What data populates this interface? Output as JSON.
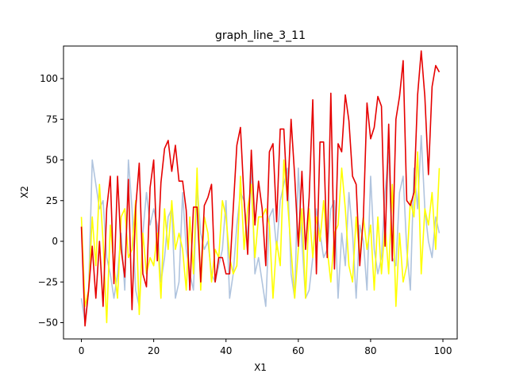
{
  "chart_data": {
    "type": "line",
    "title": "graph_line_3_11",
    "xlabel": "X1",
    "ylabel": "X2",
    "xlim": [
      -4.95,
      103.95
    ],
    "ylim": [
      -60,
      120
    ],
    "xticks": [
      0,
      20,
      40,
      60,
      80,
      100
    ],
    "yticks": [
      -50,
      -25,
      0,
      25,
      50,
      75,
      100
    ],
    "grid": false,
    "legend": "none",
    "x": [
      0,
      1,
      2,
      3,
      4,
      5,
      6,
      7,
      8,
      9,
      10,
      11,
      12,
      13,
      14,
      15,
      16,
      17,
      18,
      19,
      20,
      21,
      22,
      23,
      24,
      25,
      26,
      27,
      28,
      29,
      30,
      31,
      32,
      33,
      34,
      35,
      36,
      37,
      38,
      39,
      40,
      41,
      42,
      43,
      44,
      45,
      46,
      47,
      48,
      49,
      50,
      51,
      52,
      53,
      54,
      55,
      56,
      57,
      58,
      59,
      60,
      61,
      62,
      63,
      64,
      65,
      66,
      67,
      68,
      69,
      70,
      71,
      72,
      73,
      74,
      75,
      76,
      77,
      78,
      79,
      80,
      81,
      82,
      83,
      84,
      85,
      86,
      87,
      88,
      89,
      90,
      91,
      92,
      93,
      94,
      95,
      96,
      97,
      98,
      99
    ],
    "series": [
      {
        "color": "#b0c4de",
        "values": [
          -35,
          -50,
          -30,
          50,
          35,
          20,
          25,
          -10,
          -20,
          -35,
          -20,
          5,
          -30,
          50,
          20,
          -30,
          -40,
          5,
          30,
          10,
          20,
          10,
          -25,
          -10,
          15,
          20,
          -35,
          -25,
          30,
          -5,
          -20,
          -30,
          35,
          5,
          -5,
          0,
          -20,
          -25,
          -15,
          -5,
          25,
          -35,
          -20,
          10,
          30,
          25,
          0,
          45,
          -20,
          -10,
          -25,
          -40,
          15,
          20,
          -5,
          25,
          35,
          45,
          -20,
          -35,
          45,
          0,
          -35,
          -30,
          -10,
          20,
          5,
          -10,
          -5,
          20,
          25,
          -35,
          5,
          -15,
          30,
          5,
          -35,
          10,
          0,
          -30,
          40,
          -5,
          -20,
          -10,
          30,
          55,
          -10,
          -15,
          30,
          40,
          -5,
          -30,
          45,
          20,
          65,
          20,
          0,
          -10,
          15,
          5
        ]
      },
      {
        "color": "#ffff00",
        "values": [
          15,
          -40,
          -30,
          15,
          -15,
          35,
          0,
          -50,
          10,
          -15,
          -35,
          15,
          20,
          -10,
          -5,
          25,
          -45,
          5,
          -20,
          -10,
          -15,
          5,
          -35,
          20,
          -5,
          25,
          -5,
          5,
          -5,
          -30,
          15,
          -20,
          45,
          -30,
          15,
          5,
          -25,
          -5,
          -10,
          25,
          15,
          -10,
          -20,
          -15,
          40,
          -5,
          20,
          35,
          -10,
          15,
          15,
          20,
          10,
          -35,
          0,
          -15,
          50,
          25,
          -5,
          -35,
          -5,
          20,
          -35,
          20,
          -10,
          15,
          0,
          25,
          -5,
          -25,
          5,
          10,
          45,
          20,
          -15,
          -25,
          15,
          -10,
          15,
          -5,
          10,
          -30,
          15,
          -20,
          10,
          -20,
          35,
          -40,
          5,
          -25,
          -15,
          25,
          15,
          55,
          -20,
          20,
          10,
          30,
          -5,
          45
        ]
      },
      {
        "color": "#e60000",
        "values": [
          9,
          -52,
          -30,
          -3,
          -35,
          0,
          -40,
          20,
          40,
          -26,
          40,
          -5,
          -22,
          38,
          -42,
          20,
          48,
          -20,
          -28,
          33,
          50,
          -12,
          36,
          57,
          62,
          43,
          59,
          37,
          37,
          19,
          -30,
          21,
          21,
          -25,
          22,
          27,
          35,
          -25,
          -10,
          -10,
          -20,
          -20,
          20,
          59,
          70,
          26,
          -8,
          56,
          10,
          37,
          20,
          -15,
          55,
          60,
          12,
          69,
          69,
          25,
          75,
          40,
          -3,
          43,
          -5,
          27,
          87,
          -20,
          61,
          61,
          -10,
          91,
          -17,
          60,
          55,
          90,
          74,
          40,
          35,
          -15,
          15,
          85,
          63,
          70,
          89,
          83,
          -3,
          72,
          -12,
          75,
          89,
          111,
          25,
          22,
          30,
          90,
          117,
          89,
          41,
          95,
          108,
          104
        ]
      }
    ]
  }
}
